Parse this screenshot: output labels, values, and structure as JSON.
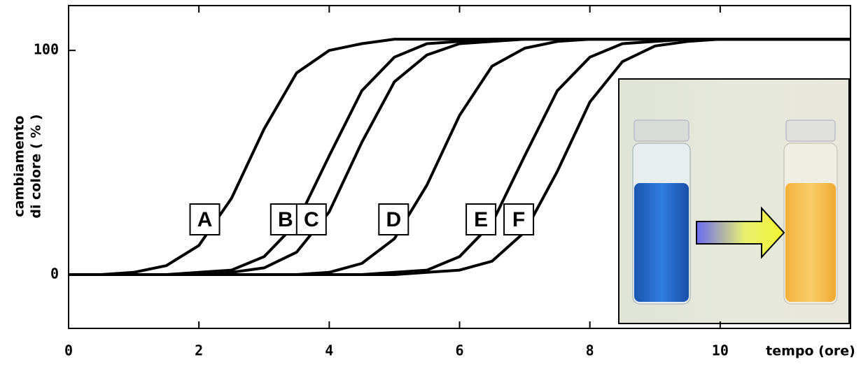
{
  "chart_data": {
    "type": "line",
    "x_label": "tempo (ore)",
    "y_label": [
      "cambiamento",
      "di colore ( % )"
    ],
    "x": [
      0,
      0.5,
      1,
      1.5,
      2,
      2.5,
      3,
      3.5,
      4,
      4.5,
      5,
      5.5,
      6,
      6.5,
      7,
      7.5,
      8,
      8.5,
      9,
      9.5,
      10,
      10.5,
      11,
      11.5,
      12
    ],
    "series": [
      {
        "name": "A",
        "color": "#000000",
        "values": [
          0,
          0,
          1,
          4,
          13,
          34,
          65,
          90,
          100,
          103,
          105,
          105,
          105,
          105,
          105,
          105,
          105,
          105,
          105,
          105,
          105,
          105,
          105,
          105,
          105
        ]
      },
      {
        "name": "B",
        "color": "#000000",
        "values": [
          0,
          0,
          0,
          0,
          1,
          2,
          8,
          23,
          53,
          82,
          97,
          103,
          104,
          105,
          105,
          105,
          105,
          105,
          105,
          105,
          105,
          105,
          105,
          105,
          105
        ]
      },
      {
        "name": "C",
        "color": "#000000",
        "values": [
          0,
          0,
          0,
          0,
          0,
          1,
          3,
          10,
          28,
          59,
          86,
          98,
          103,
          104,
          105,
          105,
          105,
          105,
          105,
          105,
          105,
          105,
          105,
          105,
          105
        ]
      },
      {
        "name": "D",
        "color": "#000000",
        "values": [
          0,
          0,
          0,
          0,
          0,
          0,
          0,
          0,
          1,
          5,
          16,
          40,
          71,
          93,
          101,
          104,
          105,
          105,
          105,
          105,
          105,
          105,
          105,
          105,
          105
        ]
      },
      {
        "name": "E",
        "color": "#000000",
        "values": [
          0,
          0,
          0,
          0,
          0,
          0,
          0,
          0,
          0,
          0,
          1,
          2,
          8,
          23,
          53,
          82,
          97,
          103,
          104,
          105,
          105,
          105,
          105,
          105,
          105
        ]
      },
      {
        "name": "F",
        "color": "#000000",
        "values": [
          0,
          0,
          0,
          0,
          0,
          0,
          0,
          0,
          0,
          0,
          0,
          1,
          2,
          6,
          19,
          46,
          77,
          95,
          102,
          104,
          105,
          105,
          105,
          105,
          105
        ]
      }
    ],
    "xlim": [
      0,
      12
    ],
    "ylim": [
      -24,
      120
    ],
    "xticks": [
      0,
      2,
      4,
      6,
      8,
      10
    ],
    "yticks": [
      0,
      100
    ]
  }
}
